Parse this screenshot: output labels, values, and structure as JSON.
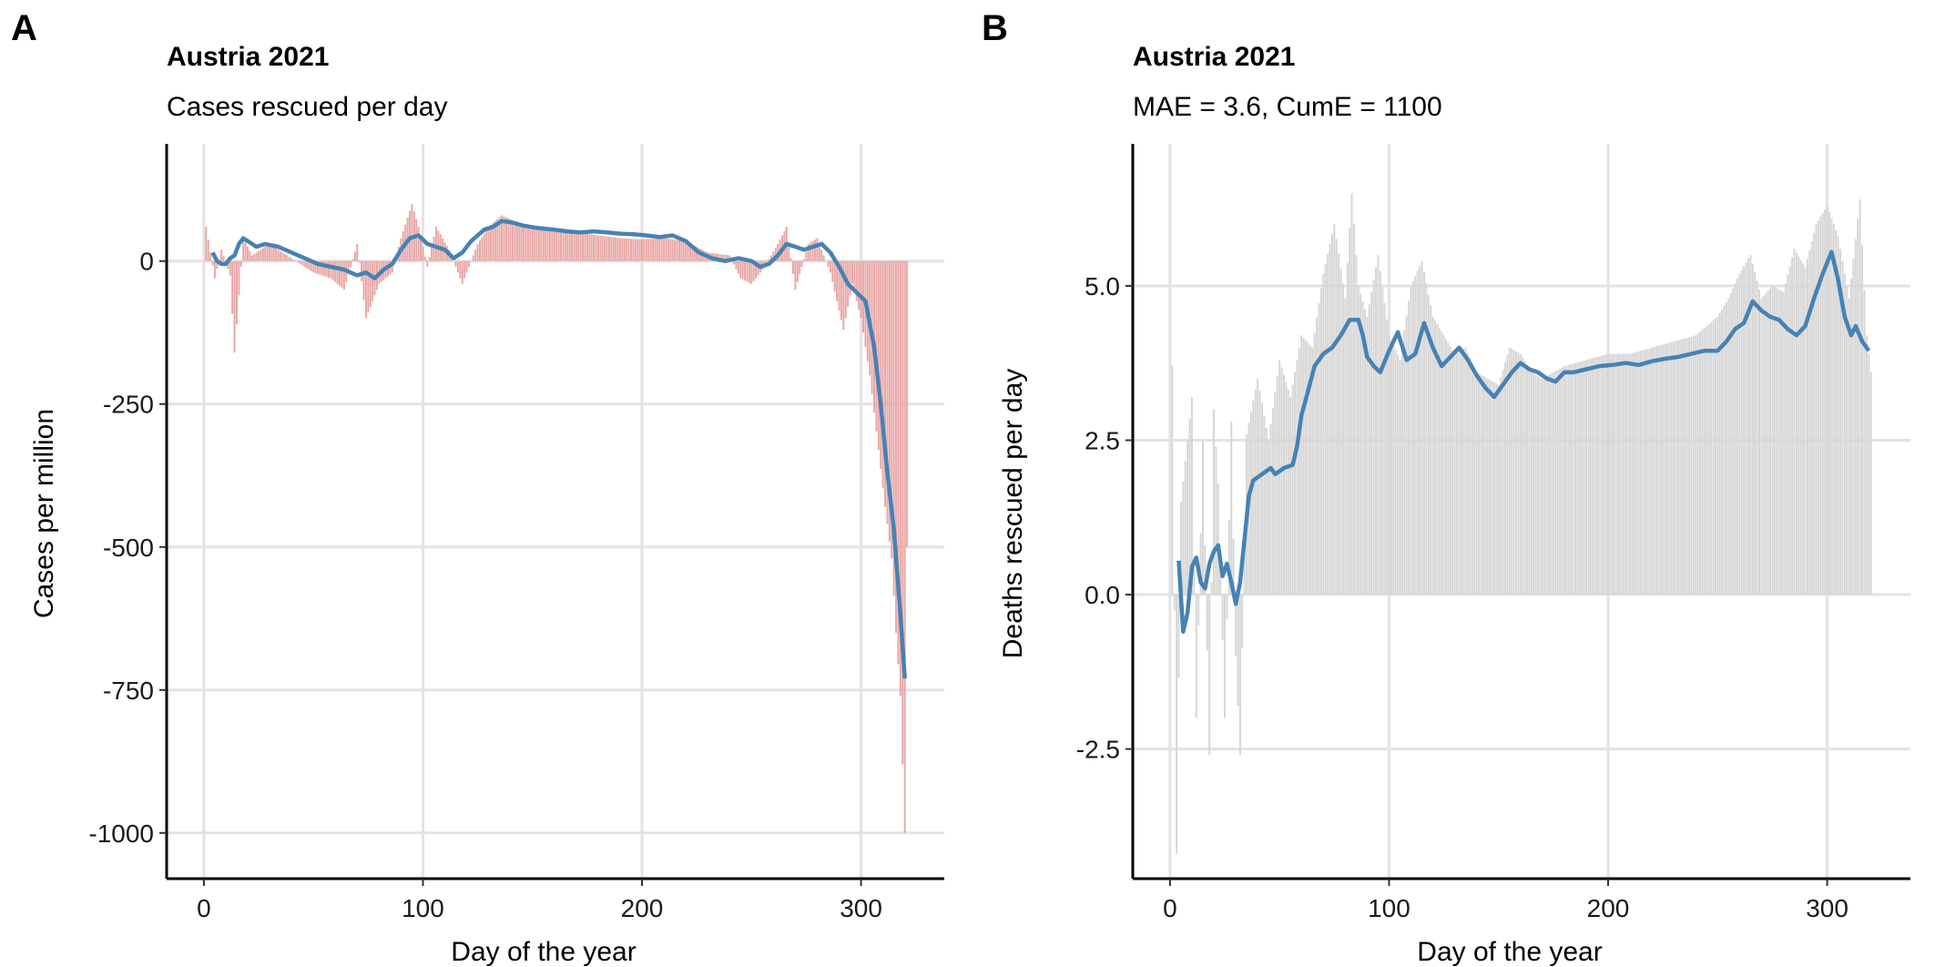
{
  "chart_data": [
    {
      "panel": "A",
      "type": "bar",
      "title": "Austria 2021",
      "subtitle": "Cases rescued per day",
      "xlabel": "Day of the year",
      "ylabel": "Cases per million",
      "xlim": [
        -17,
        338
      ],
      "ylim": [
        -1080,
        205
      ],
      "xticks": [
        0,
        100,
        200,
        300
      ],
      "xtick_labels": [
        "0",
        "100",
        "200",
        "300"
      ],
      "yticks": [
        0,
        -250,
        -500,
        -750,
        -1000
      ],
      "ytick_labels": [
        "0",
        "-250",
        "-500",
        "-750",
        "-1000"
      ],
      "grid": true,
      "bar_color": "#e8a8a6",
      "line_color": "#4682b4",
      "bar_keypoints": [
        [
          1,
          60
        ],
        [
          5,
          -30
        ],
        [
          8,
          20
        ],
        [
          12,
          -25
        ],
        [
          14,
          -160
        ],
        [
          18,
          40
        ],
        [
          22,
          10
        ],
        [
          30,
          30
        ],
        [
          40,
          5
        ],
        [
          50,
          -20
        ],
        [
          58,
          -30
        ],
        [
          64,
          -50
        ],
        [
          70,
          30
        ],
        [
          74,
          -100
        ],
        [
          80,
          -40
        ],
        [
          86,
          -20
        ],
        [
          90,
          40
        ],
        [
          95,
          100
        ],
        [
          98,
          60
        ],
        [
          102,
          -10
        ],
        [
          106,
          60
        ],
        [
          112,
          20
        ],
        [
          118,
          -40
        ],
        [
          125,
          30
        ],
        [
          130,
          60
        ],
        [
          136,
          80
        ],
        [
          142,
          70
        ],
        [
          150,
          60
        ],
        [
          160,
          55
        ],
        [
          170,
          50
        ],
        [
          180,
          45
        ],
        [
          190,
          40
        ],
        [
          200,
          38
        ],
        [
          210,
          40
        ],
        [
          220,
          35
        ],
        [
          230,
          15
        ],
        [
          240,
          10
        ],
        [
          245,
          -30
        ],
        [
          250,
          -40
        ],
        [
          256,
          -10
        ],
        [
          262,
          30
        ],
        [
          266,
          60
        ],
        [
          270,
          -50
        ],
        [
          276,
          30
        ],
        [
          280,
          40
        ],
        [
          286,
          -20
        ],
        [
          292,
          -120
        ],
        [
          296,
          -40
        ],
        [
          300,
          -100
        ],
        [
          304,
          -200
        ],
        [
          308,
          -330
        ],
        [
          311,
          -430
        ],
        [
          314,
          -520
        ],
        [
          316,
          -650
        ],
        [
          318,
          -760
        ],
        [
          320,
          -1000
        ],
        [
          321,
          -500
        ]
      ],
      "smooth_line": [
        [
          4,
          15
        ],
        [
          6,
          0
        ],
        [
          8,
          -5
        ],
        [
          10,
          -5
        ],
        [
          12,
          5
        ],
        [
          14,
          10
        ],
        [
          16,
          30
        ],
        [
          18,
          40
        ],
        [
          20,
          35
        ],
        [
          24,
          25
        ],
        [
          28,
          30
        ],
        [
          34,
          25
        ],
        [
          40,
          15
        ],
        [
          46,
          5
        ],
        [
          52,
          -5
        ],
        [
          58,
          -10
        ],
        [
          64,
          -15
        ],
        [
          70,
          -25
        ],
        [
          74,
          -20
        ],
        [
          78,
          -30
        ],
        [
          82,
          -15
        ],
        [
          86,
          -5
        ],
        [
          90,
          20
        ],
        [
          94,
          40
        ],
        [
          98,
          45
        ],
        [
          102,
          30
        ],
        [
          106,
          25
        ],
        [
          110,
          20
        ],
        [
          114,
          5
        ],
        [
          118,
          15
        ],
        [
          122,
          35
        ],
        [
          128,
          55
        ],
        [
          132,
          60
        ],
        [
          136,
          70
        ],
        [
          140,
          68
        ],
        [
          146,
          62
        ],
        [
          152,
          58
        ],
        [
          160,
          55
        ],
        [
          166,
          52
        ],
        [
          172,
          50
        ],
        [
          178,
          52
        ],
        [
          184,
          50
        ],
        [
          190,
          48
        ],
        [
          196,
          47
        ],
        [
          202,
          45
        ],
        [
          208,
          42
        ],
        [
          214,
          45
        ],
        [
          220,
          35
        ],
        [
          226,
          15
        ],
        [
          232,
          5
        ],
        [
          238,
          0
        ],
        [
          244,
          5
        ],
        [
          250,
          0
        ],
        [
          254,
          -10
        ],
        [
          258,
          -5
        ],
        [
          262,
          10
        ],
        [
          266,
          30
        ],
        [
          270,
          25
        ],
        [
          274,
          20
        ],
        [
          278,
          25
        ],
        [
          282,
          30
        ],
        [
          286,
          15
        ],
        [
          290,
          -10
        ],
        [
          294,
          -40
        ],
        [
          298,
          -55
        ],
        [
          302,
          -70
        ],
        [
          306,
          -150
        ],
        [
          309,
          -250
        ],
        [
          312,
          -370
        ],
        [
          315,
          -470
        ],
        [
          318,
          -620
        ],
        [
          320,
          -730
        ]
      ]
    },
    {
      "panel": "B",
      "type": "bar",
      "title": "Austria 2021",
      "subtitle": "MAE = 3.6, CumE = 1100",
      "xlabel": "Day of the year",
      "ylabel": "Deaths rescued per day",
      "xlim": [
        -17,
        338
      ],
      "ylim": [
        -4.6,
        7.3
      ],
      "xticks": [
        0,
        100,
        200,
        300
      ],
      "xtick_labels": [
        "0",
        "100",
        "200",
        "300"
      ],
      "yticks": [
        -2.5,
        0.0,
        2.5,
        5.0
      ],
      "ytick_labels": [
        "-2.5",
        "0.0",
        "2.5",
        "5.0"
      ],
      "grid": true,
      "bar_color": "#d6d6d6",
      "line_color": "#4682b4",
      "bar_keypoints": [
        [
          1,
          3.7
        ],
        [
          3,
          -4.2
        ],
        [
          5,
          1.5
        ],
        [
          8,
          2.5
        ],
        [
          10,
          3.2
        ],
        [
          12,
          -2.0
        ],
        [
          15,
          2.5
        ],
        [
          18,
          -2.6
        ],
        [
          20,
          3.0
        ],
        [
          22,
          1.8
        ],
        [
          25,
          -2.0
        ],
        [
          28,
          2.8
        ],
        [
          30,
          -1.0
        ],
        [
          32,
          -2.6
        ],
        [
          35,
          2.6
        ],
        [
          40,
          3.5
        ],
        [
          45,
          2.5
        ],
        [
          50,
          3.8
        ],
        [
          55,
          3.2
        ],
        [
          60,
          4.2
        ],
        [
          65,
          4.0
        ],
        [
          70,
          5.2
        ],
        [
          75,
          6.0
        ],
        [
          80,
          4.8
        ],
        [
          83,
          6.5
        ],
        [
          86,
          5.0
        ],
        [
          90,
          4.5
        ],
        [
          95,
          5.5
        ],
        [
          100,
          4.2
        ],
        [
          105,
          3.8
        ],
        [
          110,
          5.0
        ],
        [
          115,
          5.4
        ],
        [
          120,
          4.5
        ],
        [
          125,
          4.2
        ],
        [
          130,
          3.9
        ],
        [
          135,
          4.0
        ],
        [
          140,
          3.6
        ],
        [
          145,
          3.5
        ],
        [
          150,
          3.4
        ],
        [
          155,
          4.0
        ],
        [
          160,
          3.9
        ],
        [
          165,
          3.6
        ],
        [
          170,
          3.5
        ],
        [
          175,
          3.6
        ],
        [
          180,
          3.7
        ],
        [
          190,
          3.8
        ],
        [
          200,
          3.9
        ],
        [
          210,
          3.9
        ],
        [
          220,
          4.0
        ],
        [
          230,
          4.1
        ],
        [
          240,
          4.2
        ],
        [
          250,
          4.5
        ],
        [
          255,
          4.8
        ],
        [
          260,
          5.2
        ],
        [
          265,
          5.5
        ],
        [
          270,
          4.8
        ],
        [
          275,
          5.0
        ],
        [
          280,
          4.9
        ],
        [
          285,
          5.6
        ],
        [
          290,
          5.3
        ],
        [
          295,
          6.0
        ],
        [
          300,
          6.3
        ],
        [
          305,
          5.8
        ],
        [
          310,
          4.8
        ],
        [
          315,
          6.4
        ],
        [
          318,
          4.2
        ],
        [
          320,
          3.6
        ]
      ],
      "smooth_line": [
        [
          4,
          0.55
        ],
        [
          6,
          -0.6
        ],
        [
          8,
          -0.3
        ],
        [
          10,
          0.45
        ],
        [
          12,
          0.6
        ],
        [
          14,
          0.2
        ],
        [
          16,
          0.1
        ],
        [
          18,
          0.5
        ],
        [
          20,
          0.7
        ],
        [
          22,
          0.8
        ],
        [
          24,
          0.3
        ],
        [
          26,
          0.5
        ],
        [
          28,
          0.2
        ],
        [
          30,
          -0.15
        ],
        [
          32,
          0.2
        ],
        [
          34,
          0.9
        ],
        [
          36,
          1.6
        ],
        [
          38,
          1.85
        ],
        [
          42,
          1.95
        ],
        [
          46,
          2.05
        ],
        [
          48,
          1.95
        ],
        [
          52,
          2.05
        ],
        [
          56,
          2.1
        ],
        [
          58,
          2.4
        ],
        [
          60,
          2.9
        ],
        [
          63,
          3.3
        ],
        [
          66,
          3.7
        ],
        [
          70,
          3.9
        ],
        [
          74,
          4.0
        ],
        [
          78,
          4.2
        ],
        [
          82,
          4.45
        ],
        [
          86,
          4.45
        ],
        [
          88,
          4.2
        ],
        [
          90,
          3.85
        ],
        [
          93,
          3.7
        ],
        [
          96,
          3.6
        ],
        [
          100,
          3.95
        ],
        [
          104,
          4.25
        ],
        [
          108,
          3.8
        ],
        [
          112,
          3.9
        ],
        [
          116,
          4.4
        ],
        [
          120,
          4.0
        ],
        [
          124,
          3.7
        ],
        [
          128,
          3.85
        ],
        [
          132,
          4.0
        ],
        [
          136,
          3.8
        ],
        [
          140,
          3.55
        ],
        [
          144,
          3.35
        ],
        [
          148,
          3.2
        ],
        [
          152,
          3.4
        ],
        [
          156,
          3.6
        ],
        [
          160,
          3.75
        ],
        [
          164,
          3.65
        ],
        [
          168,
          3.6
        ],
        [
          172,
          3.5
        ],
        [
          176,
          3.45
        ],
        [
          180,
          3.6
        ],
        [
          184,
          3.6
        ],
        [
          190,
          3.65
        ],
        [
          196,
          3.7
        ],
        [
          202,
          3.72
        ],
        [
          208,
          3.75
        ],
        [
          214,
          3.72
        ],
        [
          220,
          3.78
        ],
        [
          226,
          3.82
        ],
        [
          232,
          3.85
        ],
        [
          238,
          3.9
        ],
        [
          244,
          3.95
        ],
        [
          250,
          3.95
        ],
        [
          254,
          4.1
        ],
        [
          258,
          4.3
        ],
        [
          262,
          4.4
        ],
        [
          266,
          4.75
        ],
        [
          270,
          4.6
        ],
        [
          274,
          4.5
        ],
        [
          278,
          4.45
        ],
        [
          282,
          4.3
        ],
        [
          286,
          4.2
        ],
        [
          290,
          4.35
        ],
        [
          294,
          4.8
        ],
        [
          298,
          5.2
        ],
        [
          302,
          5.55
        ],
        [
          305,
          5.1
        ],
        [
          308,
          4.5
        ],
        [
          311,
          4.2
        ],
        [
          313,
          4.35
        ],
        [
          316,
          4.1
        ],
        [
          319,
          3.95
        ]
      ]
    }
  ]
}
